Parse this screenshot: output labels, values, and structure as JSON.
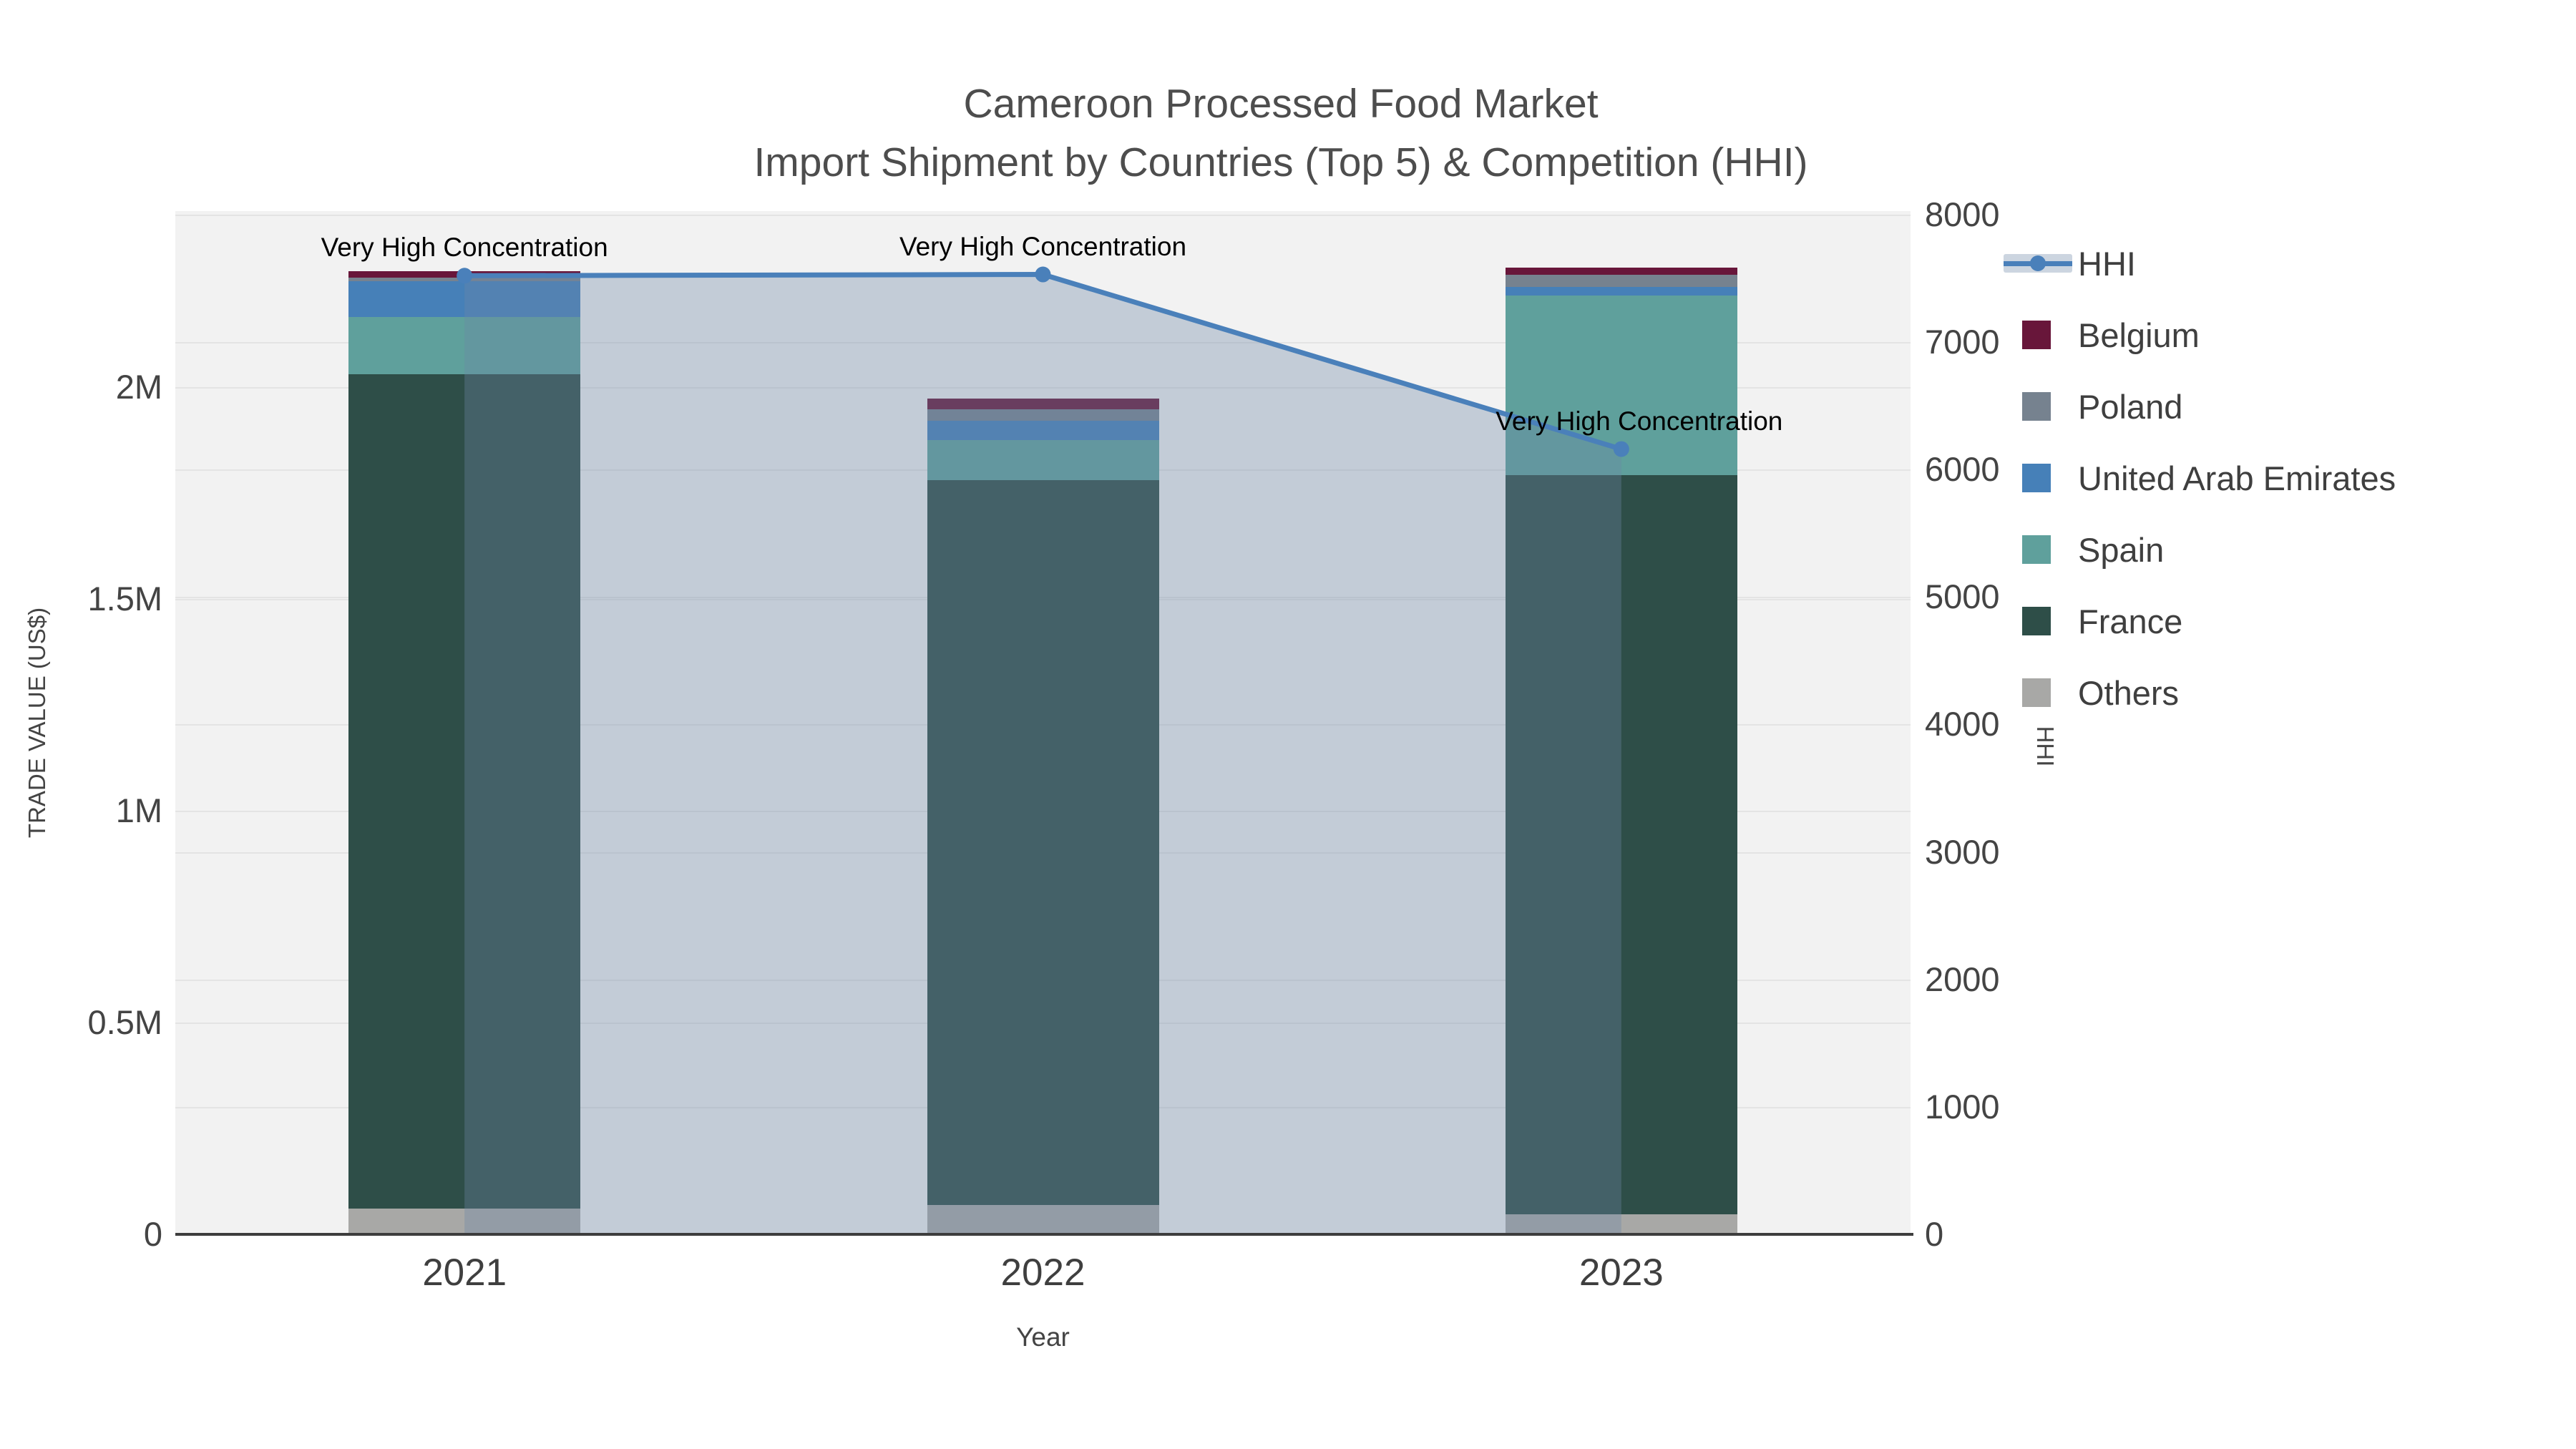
{
  "title": {
    "line1": "Cameroon Processed Food Market",
    "line2": "Import Shipment by Countries (Top 5) & Competition (HHI)"
  },
  "axes": {
    "x": {
      "title": "Year",
      "categories": [
        "2021",
        "2022",
        "2023"
      ]
    },
    "y_left": {
      "title": "TRADE VALUE (US$)",
      "tick_labels": [
        "0",
        "0.5M",
        "1M",
        "1.5M",
        "2M"
      ],
      "tick_values": [
        0,
        500000,
        1000000,
        1500000,
        2000000
      ]
    },
    "y_right": {
      "title": "HHI",
      "tick_labels": [
        "0",
        "1000",
        "2000",
        "3000",
        "4000",
        "5000",
        "6000",
        "7000",
        "8000"
      ],
      "tick_values": [
        0,
        1000,
        2000,
        3000,
        4000,
        5000,
        6000,
        7000,
        8000
      ]
    }
  },
  "chart_data": {
    "type": "bar",
    "subtype": "stacked-bars-with-line",
    "title": "Cameroon Processed Food Market — Import Shipment by Countries (Top 5) & Competition (HHI)",
    "xlabel": "Year",
    "ylabel_left": "TRADE VALUE (US$)",
    "ylabel_right": "HHI",
    "categories": [
      "2021",
      "2022",
      "2023"
    ],
    "series": [
      {
        "name": "Others",
        "values": [
          60000,
          70000,
          47000
        ]
      },
      {
        "name": "France",
        "values": [
          1970000,
          1710000,
          1745000
        ]
      },
      {
        "name": "Spain",
        "values": [
          135000,
          95000,
          425000
        ]
      },
      {
        "name": "United Arab Emirates",
        "values": [
          85000,
          45000,
          20000
        ]
      },
      {
        "name": "Poland",
        "values": [
          8000,
          27000,
          28000
        ]
      },
      {
        "name": "Belgium",
        "values": [
          15000,
          26000,
          17000
        ]
      }
    ],
    "line_series": {
      "name": "HHI",
      "axis": "right",
      "values": [
        7520,
        7530,
        6160
      ],
      "fill": "tozeroy"
    },
    "ylim_left": [
      0,
      2416000
    ],
    "ylim_right": [
      0,
      8034
    ],
    "grid": true,
    "legend_position": "right"
  },
  "annotations": [
    {
      "text": "Very High Concentration",
      "category": "2021"
    },
    {
      "text": "Very High Concentration",
      "category": "2022"
    },
    {
      "text": "Very High Concentration",
      "category": "2023"
    }
  ],
  "legend": {
    "items": [
      {
        "label": "HHI",
        "type": "line"
      },
      {
        "label": "Belgium",
        "type": "square"
      },
      {
        "label": "Poland",
        "type": "square"
      },
      {
        "label": "United Arab Emirates",
        "type": "square"
      },
      {
        "label": "Spain",
        "type": "square"
      },
      {
        "label": "France",
        "type": "square"
      },
      {
        "label": "Others",
        "type": "square"
      }
    ]
  },
  "colors": {
    "Belgium": "#68163a",
    "Poland": "#76828f",
    "United Arab Emirates": "#4680b8",
    "Spain": "#5fa09c",
    "France": "#2e4e48",
    "Others": "#a8a8a6",
    "hhi_line": "#4a80ba",
    "hhi_fill": "rgba(110,135,165,0.35)",
    "plot_background": "#f2f2f2",
    "gridline": "#e4e4e4",
    "axis_line": "#3d3d3d",
    "text": "#444444",
    "annotation_text": "#000000"
  }
}
